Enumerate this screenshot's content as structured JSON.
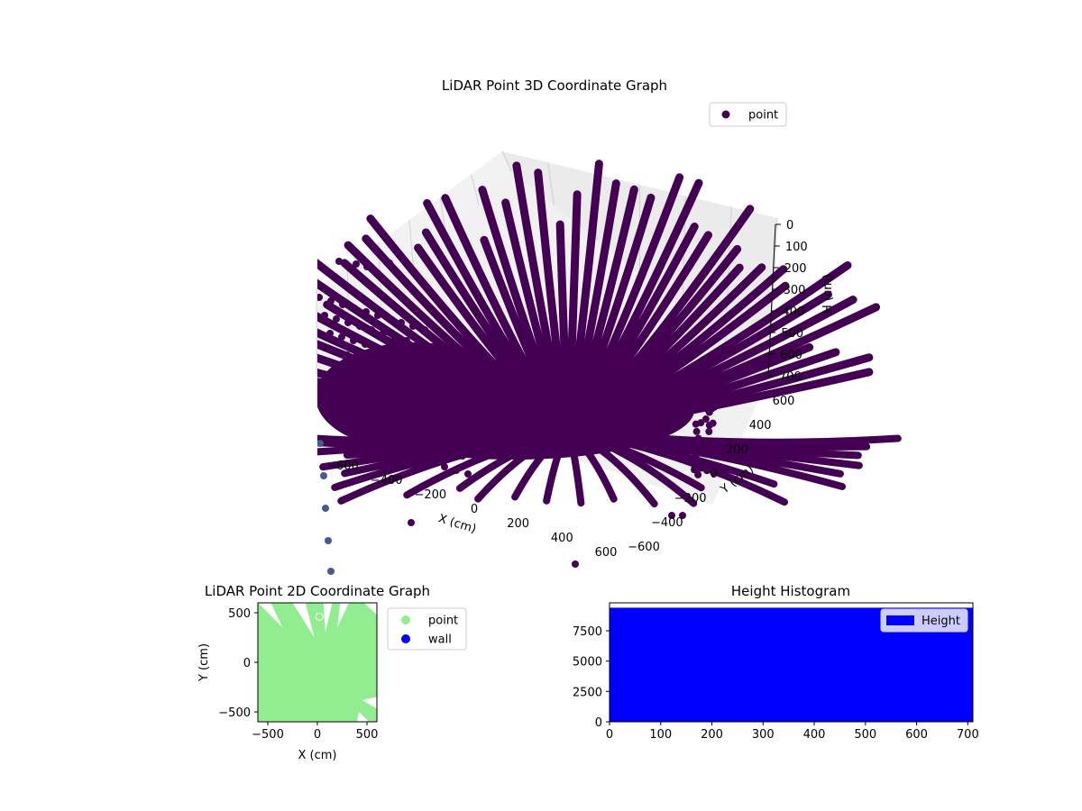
{
  "figure": {
    "background": "#ffffff"
  },
  "chart_data": [
    {
      "type": "scatter",
      "projection": "3d",
      "title": "LiDAR Point 3D Coordinate Graph",
      "xlabel": "X (cm)",
      "ylabel": "Y (cm)",
      "zlabel": "H (cm)",
      "xlim": [
        -600,
        600
      ],
      "ylim": [
        -600,
        600
      ],
      "zlim": [
        700,
        0
      ],
      "x_ticks": [
        "−600",
        "−400",
        "−200",
        "0",
        "200",
        "400",
        "600"
      ],
      "y_ticks": [
        "−600",
        "−400",
        "−200",
        "0",
        "200",
        "400",
        "600"
      ],
      "z_ticks": [
        "0",
        "100",
        "200",
        "300",
        "400",
        "500",
        "600",
        "700"
      ],
      "grid": true,
      "legend": {
        "placement": "top-right",
        "entries": [
          {
            "label": "point",
            "color": "#440154"
          }
        ]
      },
      "colors": {
        "point": "#440154",
        "point_far": "#485a8c",
        "pane": "#f2f2f2",
        "grid": "#d9d9d9"
      }
    },
    {
      "type": "scatter",
      "title": "LiDAR Point 2D Coordinate Graph",
      "xlabel": "X (cm)",
      "ylabel": "Y (cm)",
      "xlim": [
        -600,
        600
      ],
      "ylim": [
        -600,
        600
      ],
      "x_ticks": [
        "−500",
        "0",
        "500"
      ],
      "y_ticks": [
        "−500",
        "0",
        "500"
      ],
      "legend": {
        "placement": "outside-right",
        "entries": [
          {
            "label": "point",
            "color": "#90ee90"
          },
          {
            "label": "wall",
            "color": "#0000ff"
          }
        ]
      }
    },
    {
      "type": "bar",
      "title": "Height Histogram",
      "xlim": [
        0,
        710
      ],
      "ylim": [
        0,
        9800
      ],
      "x_ticks": [
        "0",
        "100",
        "200",
        "300",
        "400",
        "500",
        "600",
        "700"
      ],
      "y_ticks": [
        "0",
        "2500",
        "5000",
        "7500"
      ],
      "series": [
        {
          "name": "Height",
          "color": "#0000ff",
          "bin_range": [
            0,
            710
          ],
          "value": 9400
        }
      ],
      "legend": {
        "placement": "top-right",
        "entries": [
          {
            "label": "Height",
            "color": "#0000ff"
          }
        ]
      }
    }
  ]
}
